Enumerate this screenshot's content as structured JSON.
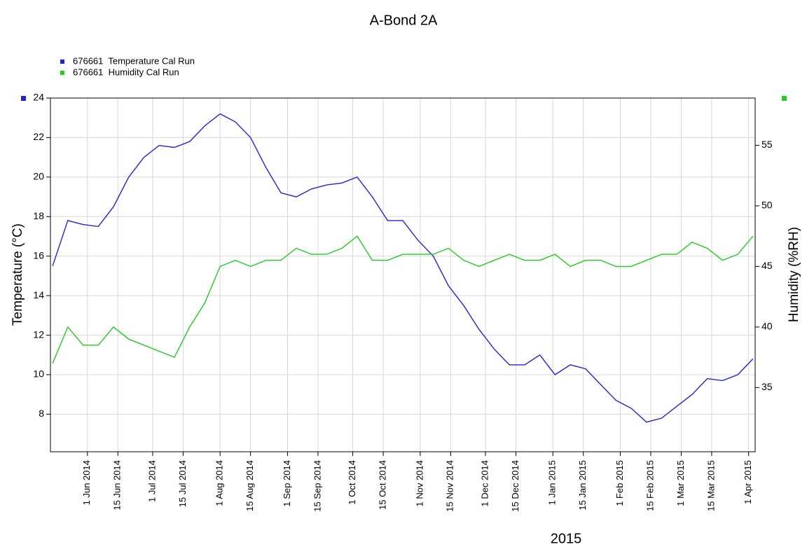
{
  "chart_data": {
    "type": "line",
    "title": "A-Bond 2A",
    "x_label": "2015",
    "y_label": "Temperature (°C)",
    "y2_label": "Humidity (%RH)",
    "grid": true,
    "legend": "top-left",
    "x": [
      "2014-05-16",
      "2014-05-23",
      "2014-05-30",
      "2014-06-06",
      "2014-06-13",
      "2014-06-20",
      "2014-06-27",
      "2014-07-04",
      "2014-07-11",
      "2014-07-18",
      "2014-07-25",
      "2014-08-01",
      "2014-08-08",
      "2014-08-15",
      "2014-08-22",
      "2014-08-29",
      "2014-09-05",
      "2014-09-12",
      "2014-09-19",
      "2014-09-26",
      "2014-10-03",
      "2014-10-10",
      "2014-10-17",
      "2014-10-24",
      "2014-10-31",
      "2014-11-07",
      "2014-11-14",
      "2014-11-21",
      "2014-11-28",
      "2014-12-05",
      "2014-12-12",
      "2014-12-19",
      "2014-12-26",
      "2015-01-02",
      "2015-01-09",
      "2015-01-16",
      "2015-01-23",
      "2015-01-30",
      "2015-02-06",
      "2015-02-13",
      "2015-02-20",
      "2015-02-27",
      "2015-03-06",
      "2015-03-13",
      "2015-03-20",
      "2015-03-27",
      "2015-04-03"
    ],
    "xlim": [
      "2014-05-15",
      "2015-04-04"
    ],
    "xticks": [
      {
        "value": "2014-06-01",
        "label": "1 Jun 2014"
      },
      {
        "value": "2014-06-15",
        "label": "15 Jun 2014"
      },
      {
        "value": "2014-07-01",
        "label": "1 Jul 2014"
      },
      {
        "value": "2014-07-15",
        "label": "15 Jul 2014"
      },
      {
        "value": "2014-08-01",
        "label": "1 Aug 2014"
      },
      {
        "value": "2014-08-15",
        "label": "15 Aug 2014"
      },
      {
        "value": "2014-09-01",
        "label": "1 Sep 2014"
      },
      {
        "value": "2014-09-15",
        "label": "15 Sep 2014"
      },
      {
        "value": "2014-10-01",
        "label": "1 Oct 2014"
      },
      {
        "value": "2014-10-15",
        "label": "15 Oct 2014"
      },
      {
        "value": "2014-11-01",
        "label": "1 Nov 2014"
      },
      {
        "value": "2014-11-15",
        "label": "15 Nov 2014"
      },
      {
        "value": "2014-12-01",
        "label": "1 Dec 2014"
      },
      {
        "value": "2014-12-15",
        "label": "15 Dec 2014"
      },
      {
        "value": "2015-01-01",
        "label": "1 Jan 2015"
      },
      {
        "value": "2015-01-15",
        "label": "15 Jan 2015"
      },
      {
        "value": "2015-02-01",
        "label": "1 Feb 2015"
      },
      {
        "value": "2015-02-15",
        "label": "15 Feb 2015"
      },
      {
        "value": "2015-03-01",
        "label": "1 Mar 2015"
      },
      {
        "value": "2015-03-15",
        "label": "15 Mar 2015"
      },
      {
        "value": "2015-04-01",
        "label": "1 Apr 2015"
      }
    ],
    "ylim": [
      6.1,
      24
    ],
    "yticks": [
      8,
      10,
      12,
      14,
      16,
      18,
      20,
      22,
      24
    ],
    "y2lim": [
      29.7,
      58.9
    ],
    "y2ticks": [
      35,
      40,
      45,
      50,
      55
    ],
    "series": [
      {
        "name": "676661  Temperature Cal Run",
        "color": "#2222dd",
        "values": [
          15.5,
          17.8,
          17.6,
          17.5,
          18.5,
          20.0,
          21.0,
          21.6,
          21.5,
          21.8,
          22.6,
          23.2,
          22.8,
          22.0,
          20.5,
          19.2,
          19.0,
          19.4,
          19.6,
          19.7,
          20.0,
          19.0,
          17.8,
          17.8,
          16.8,
          16.0,
          14.5,
          13.5,
          12.3,
          11.3,
          10.5,
          10.5,
          11.0,
          10.0,
          10.5,
          10.3,
          9.5,
          8.7,
          8.3,
          7.6,
          7.8,
          8.4,
          9.0,
          9.8,
          9.7,
          10.0,
          10.8
        ]
      },
      {
        "name": "676661  Humidity Cal Run",
        "color": "#22cc22",
        "axis": "y2",
        "values": [
          37,
          40,
          38.5,
          38.5,
          40,
          39,
          38.5,
          38,
          37.5,
          40,
          42,
          45,
          45.5,
          45,
          45.5,
          45.5,
          46.5,
          46,
          46,
          46.5,
          47.5,
          45.5,
          45.5,
          46,
          46,
          46,
          46.5,
          45.5,
          45,
          45.5,
          46,
          45.5,
          45.5,
          46,
          45,
          45.5,
          45.5,
          45,
          45,
          45.5,
          46,
          46,
          47,
          46.5,
          45.5,
          46,
          47.5
        ]
      }
    ]
  }
}
